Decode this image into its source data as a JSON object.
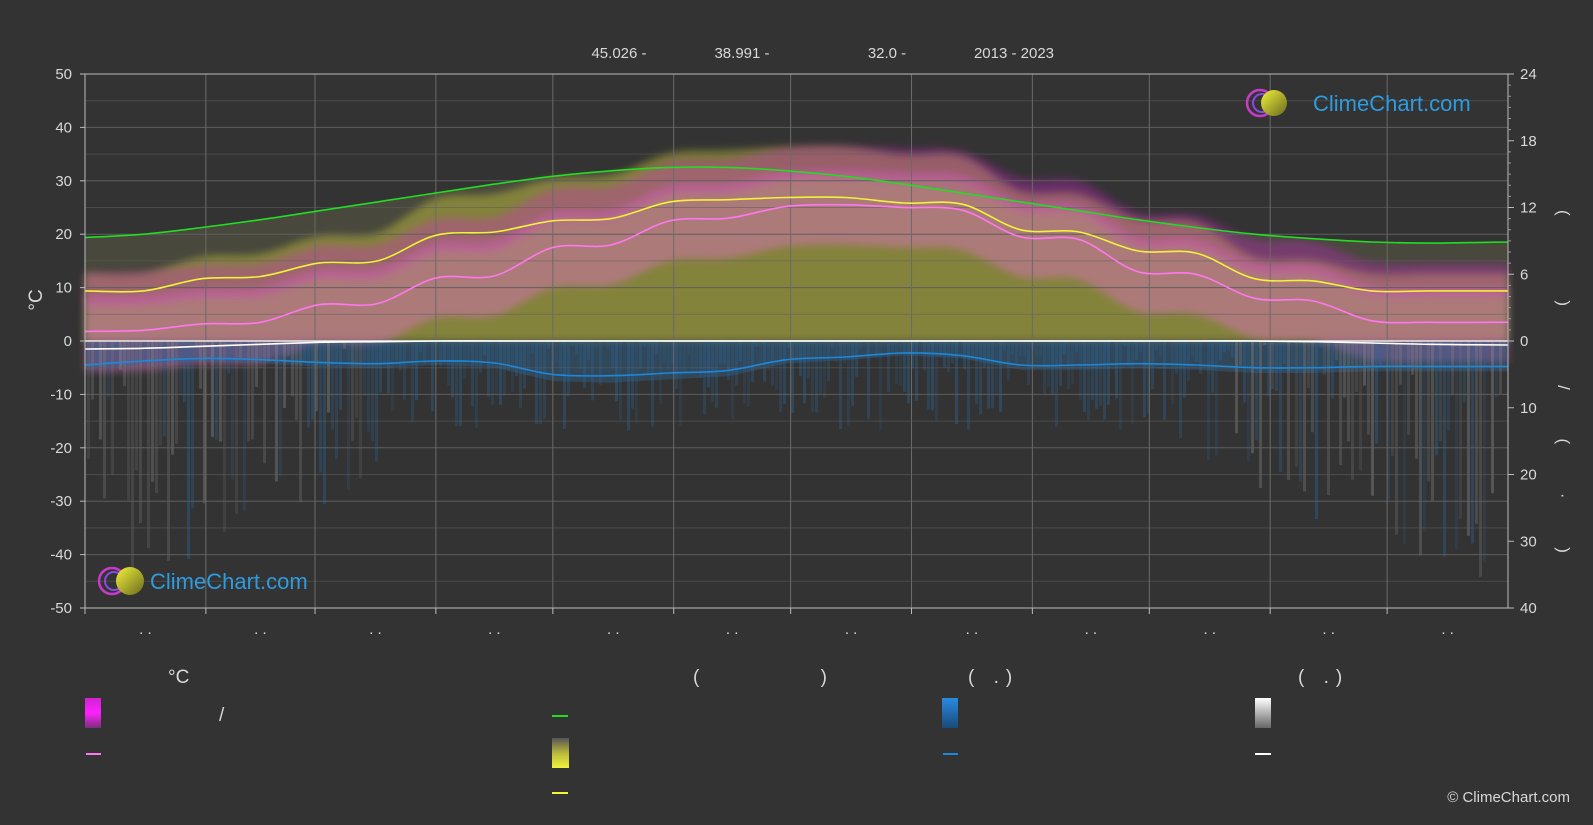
{
  "header": {
    "latitude": "45.026 -",
    "longitude": "38.991 -",
    "elevation": "32.0 -",
    "period": "2013 - 2023"
  },
  "brand": {
    "top": "ClimeChart.com",
    "bottom": "ClimeChart.com",
    "copyright": "© ClimeChart.com"
  },
  "colors": {
    "background": "#333333",
    "daylight": "#22dd22",
    "sunshine": "#f2f23a",
    "temp_mean": "#ff77ee",
    "temp_range": "#dd22dd",
    "sunshine_band": "#b4b43a",
    "precip": "#1e88d8",
    "snow": "#ffffff"
  },
  "chart_data": {
    "type": "line",
    "left_axis": {
      "label": "°C",
      "ylim": [
        -50,
        50
      ],
      "ticks": [
        "50",
        "40",
        "30",
        "20",
        "10",
        "0",
        "-10",
        "-20",
        "-30",
        "-40",
        "-50"
      ]
    },
    "right_axis_top": {
      "label": "( )",
      "ylim": [
        0,
        24
      ],
      "ticks": [
        "24",
        "18",
        "12",
        "6",
        "0"
      ]
    },
    "right_axis_bottom": {
      "label": "/ ( · )",
      "ylim": [
        0,
        40
      ],
      "ticks": [
        "10",
        "20",
        "30",
        "40"
      ]
    },
    "x_labels": [
      ". .",
      ". .",
      ". .",
      ". .",
      ". .",
      ". .",
      ". .",
      ". .",
      ". .",
      ". .",
      ". .",
      ". ."
    ],
    "grid": true,
    "x": [
      0,
      15,
      30,
      45,
      60,
      75,
      90,
      105,
      120,
      135,
      150,
      165,
      180,
      195,
      210,
      225,
      240,
      255,
      270,
      285,
      300,
      315,
      330,
      345,
      365
    ],
    "series": [
      {
        "key": "daylight",
        "unit": "h",
        "values": [
          9.3,
          9.6,
          10.2,
          10.9,
          11.7,
          12.5,
          13.3,
          14.1,
          14.8,
          15.3,
          15.6,
          15.6,
          15.3,
          14.8,
          14.1,
          13.3,
          12.5,
          11.7,
          10.9,
          10.2,
          9.6,
          9.2,
          8.9,
          8.8,
          8.9
        ]
      },
      {
        "key": "sunshine",
        "unit": "h",
        "values": [
          4.5,
          4.5,
          5.6,
          5.8,
          7.0,
          7.2,
          9.5,
          9.8,
          10.8,
          11.0,
          12.5,
          12.7,
          12.9,
          12.9,
          12.4,
          12.3,
          10.0,
          9.8,
          8.1,
          7.9,
          5.6,
          5.4,
          4.5,
          4.5,
          4.5
        ]
      },
      {
        "key": "temp_mean",
        "unit": "°C",
        "values": [
          1.8,
          2.0,
          3.2,
          3.5,
          6.8,
          7.0,
          11.8,
          12.2,
          17.5,
          18.0,
          22.5,
          23.0,
          25.2,
          25.5,
          25.0,
          24.5,
          19.5,
          19.0,
          13.0,
          12.5,
          8.0,
          7.5,
          3.8,
          3.5,
          3.5
        ]
      },
      {
        "key": "rain_mean",
        "unit": "mm",
        "values": [
          3.6,
          3.0,
          2.6,
          2.8,
          3.2,
          3.4,
          3.0,
          3.3,
          5.0,
          5.2,
          4.8,
          4.4,
          2.8,
          2.4,
          1.8,
          2.2,
          3.6,
          3.6,
          3.4,
          3.6,
          4.0,
          4.0,
          3.8,
          3.8,
          3.8
        ]
      },
      {
        "key": "snow_mean",
        "unit": "cm",
        "values": [
          1.2,
          1.1,
          0.8,
          0.5,
          0.2,
          0.1,
          0,
          0,
          0,
          0,
          0,
          0,
          0,
          0,
          0,
          0,
          0,
          0,
          0,
          0,
          0,
          0.1,
          0.3,
          0.5,
          0.6
        ]
      }
    ]
  },
  "legend": {
    "col1": {
      "header": "°C",
      "row1": "/",
      "row2": ""
    },
    "col2": {
      "header": "( )",
      "row1": "",
      "row2": "",
      "row3": ""
    },
    "col3": {
      "header": "( .)",
      "row1": "",
      "row2": ""
    },
    "col4": {
      "header": "( .)",
      "row1": "",
      "row2": ""
    }
  }
}
